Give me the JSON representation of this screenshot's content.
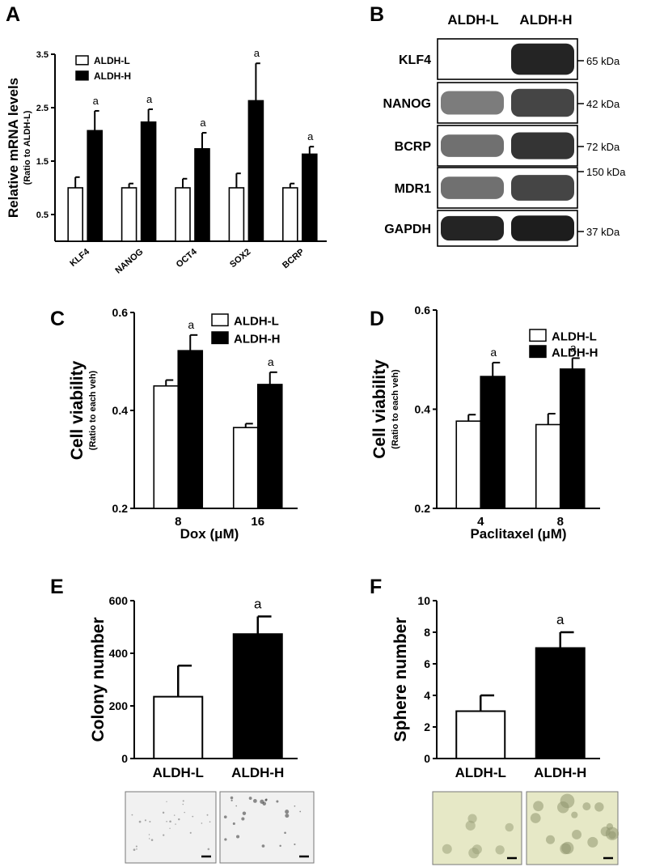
{
  "panels": {
    "A": {
      "letter": "A"
    },
    "B": {
      "letter": "B"
    },
    "C": {
      "letter": "C"
    },
    "D": {
      "letter": "D"
    },
    "E": {
      "letter": "E"
    },
    "F": {
      "letter": "F"
    }
  },
  "chart_data": [
    {
      "panel": "A",
      "type": "bar",
      "ylabel": "Relative mRNA levels",
      "ylabel_sub": "(Ratio to  ALDH-L)",
      "xlabel": "",
      "categories": [
        "KLF4",
        "NANOG",
        "OCT4",
        "SOX2",
        "BCRP"
      ],
      "yticks": [
        "0.5",
        "1.5",
        "2.5",
        "3.5"
      ],
      "ytick_values": [
        0.5,
        1.5,
        2.5,
        3.5
      ],
      "ylim": [
        0.0,
        3.5
      ],
      "legend": "top-left",
      "series": [
        {
          "name": "ALDH-L",
          "fill": "#ffffff",
          "values": [
            1.0,
            1.0,
            1.0,
            1.0,
            1.0
          ],
          "errors": [
            0.2,
            0.08,
            0.17,
            0.27,
            0.08
          ]
        },
        {
          "name": "ALDH-H",
          "fill": "#000000",
          "values": [
            2.07,
            2.23,
            1.73,
            2.63,
            1.63
          ],
          "errors": [
            0.37,
            0.24,
            0.3,
            0.7,
            0.14
          ]
        }
      ],
      "annotations": [
        "a",
        "a",
        "a",
        "a",
        "a"
      ]
    },
    {
      "panel": "C",
      "type": "bar",
      "ylabel": "Cell viability",
      "ylabel_sub": "(Ratio to each veh)",
      "xlabel": "Dox (μM)",
      "categories": [
        "8",
        "16"
      ],
      "yticks": [
        "0.2",
        "0.4",
        "0.6"
      ],
      "ytick_values": [
        0.2,
        0.4,
        0.6
      ],
      "ylim": [
        0.2,
        0.6
      ],
      "legend": "top-right",
      "series": [
        {
          "name": "ALDH-L",
          "fill": "#ffffff",
          "values": [
            0.45,
            0.365
          ],
          "errors": [
            0.012,
            0.008
          ]
        },
        {
          "name": "ALDH-H",
          "fill": "#000000",
          "values": [
            0.522,
            0.453
          ],
          "errors": [
            0.032,
            0.025
          ]
        }
      ],
      "annotations": [
        "a",
        "a"
      ]
    },
    {
      "panel": "D",
      "type": "bar",
      "ylabel": "Cell viability",
      "ylabel_sub": "(Ratio to each veh)",
      "xlabel": "Paclitaxel (μM)",
      "categories": [
        "4",
        "8"
      ],
      "yticks": [
        "0.2",
        "0.4",
        "0.6"
      ],
      "ytick_values": [
        0.2,
        0.4,
        0.6
      ],
      "ylim": [
        0.2,
        0.6
      ],
      "legend": "top-right",
      "series": [
        {
          "name": "ALDH-L",
          "fill": "#ffffff",
          "values": [
            0.376,
            0.369
          ],
          "errors": [
            0.013,
            0.022
          ]
        },
        {
          "name": "ALDH-H",
          "fill": "#000000",
          "values": [
            0.466,
            0.481
          ],
          "errors": [
            0.028,
            0.022
          ]
        }
      ],
      "annotations": [
        "a",
        "a"
      ]
    },
    {
      "panel": "E",
      "type": "bar",
      "ylabel": "Colony number",
      "xlabel": "",
      "categories": [
        "ALDH-L",
        "ALDH-H"
      ],
      "yticks": [
        "0",
        "200",
        "400",
        "600"
      ],
      "ytick_values": [
        0,
        200,
        400,
        600
      ],
      "ylim": [
        0,
        600
      ],
      "series": [
        {
          "name": "",
          "fills": [
            "#ffffff",
            "#000000"
          ],
          "values": [
            235,
            473
          ],
          "errors": [
            118,
            67
          ]
        }
      ],
      "annotations": [
        "",
        "a"
      ]
    },
    {
      "panel": "F",
      "type": "bar",
      "ylabel": "Sphere number",
      "xlabel": "",
      "categories": [
        "ALDH-L",
        "ALDH-H"
      ],
      "yticks": [
        "0",
        "2",
        "4",
        "6",
        "8",
        "10"
      ],
      "ytick_values": [
        0,
        2,
        4,
        6,
        8,
        10
      ],
      "ylim": [
        0,
        10
      ],
      "series": [
        {
          "name": "",
          "fills": [
            "#ffffff",
            "#000000"
          ],
          "values": [
            3.0,
            7.0
          ],
          "errors": [
            1.0,
            1.0
          ]
        }
      ],
      "annotations": [
        "",
        "a"
      ]
    }
  ],
  "western_blot": {
    "headers": [
      "ALDH-L",
      "ALDH-H"
    ],
    "rows": [
      {
        "protein": "KLF4",
        "marker": "65 kDa"
      },
      {
        "protein": "NANOG",
        "marker": "42 kDa"
      },
      {
        "protein": "BCRP",
        "marker": "72 kDa"
      },
      {
        "protein": "MDR1",
        "marker": "150 kDa"
      },
      {
        "protein": "GAPDH",
        "marker": "37 kDa"
      }
    ]
  },
  "micrographs": {
    "colony_fill": "#f1f1f1",
    "sphere_fill": "#e6e8c6"
  }
}
